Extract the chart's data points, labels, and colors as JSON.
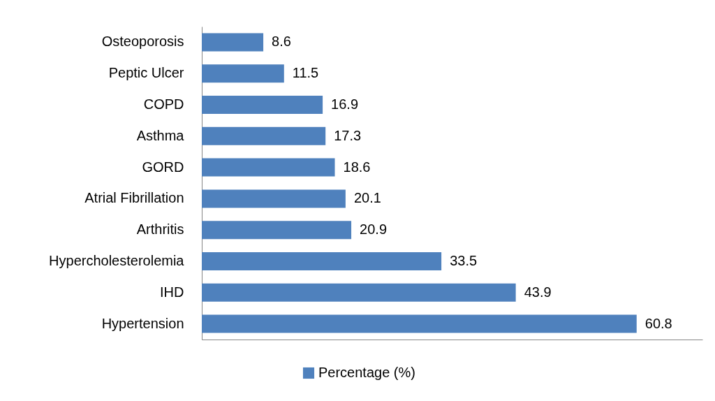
{
  "chart_data": {
    "type": "bar",
    "orientation": "horizontal",
    "categories": [
      "Osteoporosis",
      "Peptic Ulcer",
      "COPD",
      "Asthma",
      "GORD",
      "Atrial Fibrillation",
      "Arthritis",
      "Hypercholesterolemia",
      "IHD",
      "Hypertension"
    ],
    "series": [
      {
        "name": "Percentage (%)",
        "color": "#4f81bd",
        "values": [
          8.6,
          11.5,
          16.9,
          17.3,
          18.6,
          20.1,
          20.9,
          33.5,
          43.9,
          60.8
        ]
      }
    ],
    "xlim": [
      0,
      70
    ],
    "data_labels": true,
    "legend": "bottom",
    "tick_labels": "y",
    "grid": false
  }
}
